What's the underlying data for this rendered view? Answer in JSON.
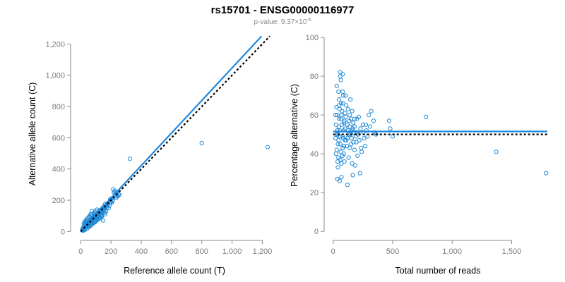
{
  "title": "rs15701 - ENSG00000116977",
  "subtitle_prefix": "p-value: 9.37×10",
  "subtitle_exponent": "-6",
  "colors": {
    "points": "#1f8ad6",
    "fit_line": "#1f87e0",
    "reference_line": "#000000",
    "axis": "#8a8a8a"
  },
  "chart_data": [
    {
      "type": "scatter",
      "xlabel": "Reference allele count (T)",
      "ylabel": "Alternative allele count (C)",
      "xlim": [
        -20,
        1240
      ],
      "ylim": [
        -12,
        1265
      ],
      "xticks": [
        0,
        200,
        400,
        600,
        800,
        1000,
        1200
      ],
      "xtick_labels": [
        "0",
        "200",
        "400",
        "600",
        "800",
        "1,000",
        "1,200"
      ],
      "yticks": [
        0,
        200,
        400,
        600,
        800,
        1000,
        1200
      ],
      "ytick_labels": [
        "0",
        "200",
        "400",
        "600",
        "800",
        "1,000",
        "1,200"
      ],
      "fit_line": {
        "x": [
          0,
          1195
        ],
        "y": [
          5,
          1250
        ]
      },
      "reference_line": {
        "x": [
          0,
          1250
        ],
        "y": [
          0,
          1250
        ]
      },
      "points": [
        [
          10,
          8
        ],
        [
          12,
          15
        ],
        [
          15,
          10
        ],
        [
          18,
          22
        ],
        [
          20,
          12
        ],
        [
          22,
          30
        ],
        [
          25,
          18
        ],
        [
          28,
          35
        ],
        [
          30,
          25
        ],
        [
          32,
          40
        ],
        [
          35,
          28
        ],
        [
          38,
          45
        ],
        [
          40,
          33
        ],
        [
          42,
          50
        ],
        [
          45,
          38
        ],
        [
          48,
          55
        ],
        [
          50,
          42
        ],
        [
          52,
          60
        ],
        [
          55,
          47
        ],
        [
          58,
          65
        ],
        [
          60,
          52
        ],
        [
          62,
          70
        ],
        [
          65,
          56
        ],
        [
          68,
          75
        ],
        [
          70,
          62
        ],
        [
          72,
          80
        ],
        [
          75,
          66
        ],
        [
          78,
          85
        ],
        [
          80,
          70
        ],
        [
          82,
          90
        ],
        [
          85,
          75
        ],
        [
          88,
          95
        ],
        [
          90,
          80
        ],
        [
          92,
          100
        ],
        [
          95,
          84
        ],
        [
          98,
          105
        ],
        [
          100,
          88
        ],
        [
          105,
          110
        ],
        [
          110,
          95
        ],
        [
          115,
          100
        ],
        [
          120,
          108
        ],
        [
          125,
          115
        ],
        [
          130,
          120
        ],
        [
          135,
          118
        ],
        [
          140,
          125
        ],
        [
          145,
          135
        ],
        [
          150,
          140
        ],
        [
          155,
          145
        ],
        [
          160,
          150
        ],
        [
          165,
          160
        ],
        [
          170,
          165
        ],
        [
          180,
          172
        ],
        [
          190,
          185
        ],
        [
          200,
          190
        ],
        [
          210,
          200
        ],
        [
          220,
          250
        ],
        [
          230,
          245
        ],
        [
          240,
          230
        ],
        [
          250,
          240
        ],
        [
          14,
          5
        ],
        [
          16,
          25
        ],
        [
          24,
          8
        ],
        [
          26,
          45
        ],
        [
          34,
          15
        ],
        [
          36,
          60
        ],
        [
          44,
          20
        ],
        [
          46,
          75
        ],
        [
          54,
          30
        ],
        [
          56,
          90
        ],
        [
          64,
          35
        ],
        [
          66,
          100
        ],
        [
          74,
          50
        ],
        [
          76,
          110
        ],
        [
          84,
          55
        ],
        [
          86,
          120
        ],
        [
          94,
          60
        ],
        [
          96,
          130
        ],
        [
          104,
          70
        ],
        [
          108,
          140
        ],
        [
          112,
          75
        ],
        [
          118,
          82
        ],
        [
          122,
          130
        ],
        [
          128,
          90
        ],
        [
          132,
          100
        ],
        [
          138,
          95
        ],
        [
          142,
          110
        ],
        [
          148,
          70
        ],
        [
          152,
          160
        ],
        [
          158,
          120
        ],
        [
          162,
          175
        ],
        [
          168,
          130
        ],
        [
          175,
          180
        ],
        [
          185,
          150
        ],
        [
          195,
          205
        ],
        [
          205,
          185
        ],
        [
          215,
          270
        ],
        [
          225,
          260
        ],
        [
          235,
          215
        ],
        [
          245,
          225
        ],
        [
          255,
          235
        ],
        [
          30,
          55
        ],
        [
          40,
          70
        ],
        [
          50,
          30
        ],
        [
          60,
          40
        ],
        [
          70,
          45
        ],
        [
          80,
          50
        ],
        [
          90,
          60
        ],
        [
          100,
          65
        ],
        [
          110,
          80
        ],
        [
          120,
          90
        ],
        [
          130,
          85
        ],
        [
          140,
          100
        ],
        [
          20,
          50
        ],
        [
          25,
          60
        ],
        [
          35,
          75
        ],
        [
          45,
          85
        ],
        [
          55,
          95
        ],
        [
          65,
          110
        ],
        [
          75,
          130
        ],
        [
          85,
          55
        ],
        [
          95,
          120
        ],
        [
          105,
          100
        ],
        [
          115,
          120
        ],
        [
          125,
          135
        ],
        [
          135,
          140
        ],
        [
          145,
          150
        ],
        [
          155,
          130
        ],
        [
          160,
          110
        ],
        [
          170,
          150
        ],
        [
          180,
          175
        ],
        [
          190,
          165
        ],
        [
          200,
          210
        ],
        [
          210,
          195
        ],
        [
          230,
          225
        ],
        [
          240,
          250
        ],
        [
          325,
          465
        ],
        [
          800,
          565
        ],
        [
          1235,
          540
        ]
      ]
    },
    {
      "type": "scatter",
      "xlabel": "Total number of reads",
      "ylabel": "Percentage alternative (C)",
      "xlim": [
        -10,
        1800
      ],
      "ylim": [
        -1,
        100
      ],
      "xticks": [
        0,
        500,
        1000,
        1500
      ],
      "xtick_labels": [
        "0",
        "500",
        "1,000",
        "1,500"
      ],
      "yticks": [
        0,
        20,
        40,
        60,
        80,
        100
      ],
      "ytick_labels": [
        "0",
        "20",
        "40",
        "60",
        "80",
        "100"
      ],
      "fit_line": {
        "x": [
          0,
          1800
        ],
        "y": [
          51.5,
          51.5
        ]
      },
      "reference_line": {
        "x": [
          0,
          1800
        ],
        "y": [
          50,
          50
        ]
      },
      "points": [
        [
          20,
          48
        ],
        [
          25,
          55
        ],
        [
          30,
          42
        ],
        [
          35,
          60
        ],
        [
          40,
          50
        ],
        [
          45,
          38
        ],
        [
          50,
          65
        ],
        [
          55,
          52
        ],
        [
          60,
          45
        ],
        [
          65,
          58
        ],
        [
          70,
          35
        ],
        [
          75,
          62
        ],
        [
          80,
          49
        ],
        [
          85,
          70
        ],
        [
          90,
          44
        ],
        [
          95,
          57
        ],
        [
          100,
          53
        ],
        [
          30,
          75
        ],
        [
          40,
          33
        ],
        [
          50,
          68
        ],
        [
          60,
          80
        ],
        [
          70,
          28
        ],
        [
          80,
          72
        ],
        [
          90,
          40
        ],
        [
          100,
          61
        ],
        [
          110,
          47
        ],
        [
          120,
          55
        ],
        [
          130,
          50
        ],
        [
          140,
          43
        ],
        [
          150,
          58
        ],
        [
          160,
          52
        ],
        [
          170,
          46
        ],
        [
          180,
          54
        ],
        [
          190,
          49
        ],
        [
          200,
          51
        ],
        [
          60,
          82
        ],
        [
          80,
          81
        ],
        [
          55,
          26
        ],
        [
          35,
          27
        ],
        [
          120,
          24
        ],
        [
          110,
          65
        ],
        [
          130,
          38
        ],
        [
          140,
          60
        ],
        [
          150,
          45
        ],
        [
          160,
          35
        ],
        [
          170,
          56
        ],
        [
          180,
          42
        ],
        [
          200,
          58
        ],
        [
          210,
          50
        ],
        [
          220,
          47
        ],
        [
          230,
          53
        ],
        [
          240,
          41
        ],
        [
          250,
          55
        ],
        [
          260,
          48
        ],
        [
          270,
          44
        ],
        [
          280,
          52
        ],
        [
          290,
          49
        ],
        [
          300,
          60
        ],
        [
          310,
          54
        ],
        [
          320,
          62
        ],
        [
          340,
          57
        ],
        [
          350,
          51
        ],
        [
          360,
          50
        ],
        [
          470,
          57
        ],
        [
          480,
          53
        ],
        [
          500,
          49
        ],
        [
          780,
          59
        ],
        [
          1370,
          41
        ],
        [
          1790,
          30
        ],
        [
          45,
          72
        ],
        [
          65,
          78
        ],
        [
          85,
          66
        ],
        [
          105,
          70
        ],
        [
          125,
          63
        ],
        [
          145,
          68
        ],
        [
          165,
          29
        ],
        [
          185,
          34
        ],
        [
          205,
          39
        ],
        [
          225,
          30
        ],
        [
          25,
          40
        ],
        [
          35,
          52
        ],
        [
          45,
          47
        ],
        [
          55,
          63
        ],
        [
          65,
          41
        ],
        [
          75,
          55
        ],
        [
          85,
          48
        ],
        [
          95,
          36
        ],
        [
          105,
          59
        ],
        [
          115,
          44
        ],
        [
          125,
          52
        ],
        [
          135,
          57
        ],
        [
          145,
          50
        ],
        [
          155,
          48
        ],
        [
          165,
          53
        ],
        [
          175,
          51
        ],
        [
          195,
          46
        ],
        [
          215,
          59
        ],
        [
          235,
          43
        ],
        [
          255,
          51
        ],
        [
          275,
          55
        ],
        [
          90,
          56
        ],
        [
          70,
          60
        ],
        [
          50,
          58
        ],
        [
          40,
          45
        ],
        [
          30,
          50
        ],
        [
          60,
          37
        ],
        [
          80,
          43
        ],
        [
          100,
          47
        ],
        [
          120,
          48
        ],
        [
          140,
          54
        ],
        [
          160,
          62
        ],
        [
          180,
          58
        ],
        [
          20,
          60
        ],
        [
          28,
          64
        ],
        [
          38,
          36
        ],
        [
          48,
          54
        ],
        [
          58,
          49
        ],
        [
          68,
          66
        ],
        [
          78,
          39
        ],
        [
          88,
          52
        ]
      ]
    }
  ]
}
